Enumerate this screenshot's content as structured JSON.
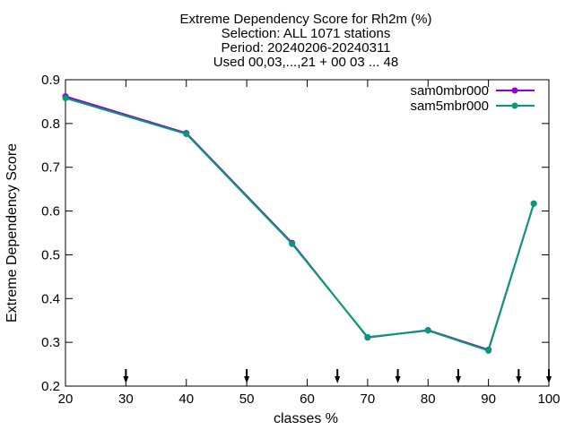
{
  "chart_data": {
    "type": "line",
    "title_lines": [
      "Extreme Dependency Score  for Rh2m (%)",
      "Selection: ALL   1071 stations",
      "Period: 20240206-20240311",
      "Used 00,03,...,21 + 00 03 ... 48"
    ],
    "xlabel": "classes %",
    "ylabel": "Extreme Dependency Score",
    "xlim": [
      20,
      100
    ],
    "ylim": [
      0.2,
      0.9
    ],
    "x_ticks": [
      20,
      30,
      40,
      50,
      60,
      70,
      80,
      90,
      100
    ],
    "x_tick_labels": [
      "20",
      "30",
      "40",
      "50",
      "60",
      "70",
      "80",
      "90",
      "100"
    ],
    "y_ticks": [
      0.2,
      0.3,
      0.4,
      0.5,
      0.6,
      0.7,
      0.8,
      0.9
    ],
    "y_tick_labels": [
      "0.2",
      "0.3",
      "0.4",
      "0.5",
      "0.6",
      "0.7",
      "0.8",
      "0.9"
    ],
    "arrow_markers_x": [
      30,
      50,
      65,
      75,
      85,
      95,
      100
    ],
    "legend_position": "top-right",
    "grid": false,
    "series": [
      {
        "name": "sam0mbr000",
        "color": "#9400d3",
        "x": [
          20,
          40,
          57.5,
          70,
          80,
          90,
          97.5
        ],
        "y": [
          0.862,
          0.778,
          0.527,
          0.311,
          0.328,
          0.283,
          0.617
        ]
      },
      {
        "name": "sam5mbr000",
        "color": "#009e73",
        "x": [
          20,
          40,
          57.5,
          70,
          80,
          90,
          97.5
        ],
        "y": [
          0.858,
          0.776,
          0.525,
          0.312,
          0.327,
          0.281,
          0.617
        ]
      }
    ]
  }
}
